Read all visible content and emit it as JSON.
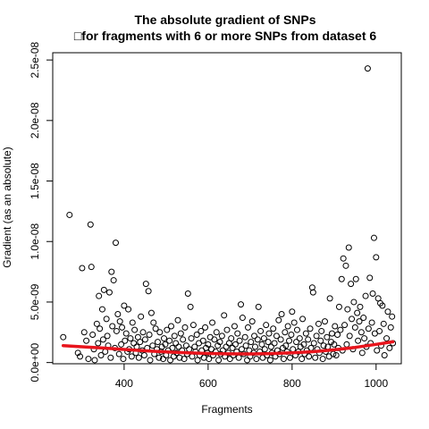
{
  "chart_data": {
    "type": "scatter",
    "title": "The absolute gradient of SNPs",
    "subtitle": "□for fragments with 6 or more SNPs from dataset 6",
    "xlabel": "Fragments",
    "ylabel": "Gradient (as an absolute)",
    "xlim": [
      230,
      1060
    ],
    "ylim": [
      -1e-10,
      2.56e-08
    ],
    "x_ticks": [
      400,
      600,
      800,
      1000
    ],
    "x_tick_labels": [
      "400",
      "600",
      "800",
      "1000"
    ],
    "y_ticks": [
      0,
      5e-09,
      1e-08,
      1.5e-08,
      2e-08,
      2.5e-08
    ],
    "y_tick_labels": [
      "0.0e+00",
      "5.0e-09",
      "1.0e-08",
      "1.5e-08",
      "2.0e-08",
      "2.5e-08"
    ],
    "grid": false,
    "legend": "none",
    "colors": {
      "points": "#000000",
      "trend": "#e8141c"
    },
    "trend": {
      "x": [
        255,
        300,
        350,
        400,
        450,
        500,
        550,
        600,
        650,
        700,
        750,
        800,
        850,
        900,
        950,
        1000,
        1040
      ],
      "y": [
        1.4e-09,
        1.3e-09,
        1.2e-09,
        1.08e-09,
        9.7e-10,
        8.8e-10,
        8e-10,
        7.5e-10,
        7.2e-10,
        7.1e-10,
        7.4e-10,
        8e-10,
        9e-10,
        1.05e-09,
        1.25e-09,
        1.5e-09,
        1.72e-09
      ]
    },
    "points": [
      [
        255,
        2.1e-09
      ],
      [
        270,
        1.22e-08
      ],
      [
        290,
        8e-10
      ],
      [
        295,
        5e-10
      ],
      [
        300,
        7.8e-09
      ],
      [
        305,
        2.5e-09
      ],
      [
        310,
        1.8e-09
      ],
      [
        315,
        3e-10
      ],
      [
        320,
        1.14e-08
      ],
      [
        322,
        7.9e-09
      ],
      [
        325,
        2.3e-09
      ],
      [
        328,
        1.1e-09
      ],
      [
        330,
        2e-10
      ],
      [
        335,
        3.2e-09
      ],
      [
        338,
        1.6e-09
      ],
      [
        340,
        5.5e-09
      ],
      [
        342,
        2.8e-09
      ],
      [
        345,
        6e-10
      ],
      [
        348,
        4.4e-09
      ],
      [
        350,
        1.9e-09
      ],
      [
        352,
        6e-09
      ],
      [
        355,
        9e-10
      ],
      [
        358,
        3.6e-09
      ],
      [
        360,
        2.2e-09
      ],
      [
        362,
        1.4e-09
      ],
      [
        365,
        5.8e-09
      ],
      [
        368,
        4e-10
      ],
      [
        370,
        7.5e-09
      ],
      [
        372,
        3e-09
      ],
      [
        375,
        6.8e-09
      ],
      [
        378,
        1.2e-09
      ],
      [
        380,
        9.9e-09
      ],
      [
        382,
        2.6e-09
      ],
      [
        385,
        4e-09
      ],
      [
        388,
        7e-10
      ],
      [
        390,
        3.4e-09
      ],
      [
        393,
        1.5e-09
      ],
      [
        395,
        2.9e-09
      ],
      [
        398,
        3e-10
      ],
      [
        400,
        4.7e-09
      ],
      [
        402,
        1.8e-09
      ],
      [
        405,
        2.4e-09
      ],
      [
        408,
        9e-10
      ],
      [
        410,
        4.4e-09
      ],
      [
        412,
        1.1e-09
      ],
      [
        415,
        2e-09
      ],
      [
        418,
        5e-10
      ],
      [
        420,
        3.3e-09
      ],
      [
        423,
        1.6e-09
      ],
      [
        425,
        2.7e-09
      ],
      [
        428,
        8e-10
      ],
      [
        430,
        1.3e-09
      ],
      [
        433,
        2.1e-09
      ],
      [
        435,
        4e-10
      ],
      [
        438,
        1.7e-09
      ],
      [
        440,
        3.8e-09
      ],
      [
        443,
        1e-09
      ],
      [
        445,
        2.5e-09
      ],
      [
        448,
        6e-10
      ],
      [
        450,
        1.9e-09
      ],
      [
        452,
        6.5e-09
      ],
      [
        455,
        1.2e-09
      ],
      [
        458,
        5.9e-09
      ],
      [
        460,
        2.3e-09
      ],
      [
        462,
        2e-10
      ],
      [
        465,
        4.1e-09
      ],
      [
        468,
        1.4e-09
      ],
      [
        470,
        3.3e-09
      ],
      [
        472,
        7e-10
      ],
      [
        475,
        2.8e-09
      ],
      [
        478,
        1.1e-09
      ],
      [
        480,
        1.7e-09
      ],
      [
        483,
        4e-10
      ],
      [
        485,
        2.5e-09
      ],
      [
        488,
        9e-10
      ],
      [
        490,
        1.3e-09
      ],
      [
        493,
        3e-10
      ],
      [
        495,
        2e-09
      ],
      [
        498,
        1.5e-09
      ],
      [
        500,
        6e-10
      ],
      [
        502,
        2.7e-09
      ],
      [
        505,
        1e-09
      ],
      [
        508,
        1.8e-09
      ],
      [
        510,
        2e-10
      ],
      [
        512,
        3e-09
      ],
      [
        515,
        1.2e-09
      ],
      [
        518,
        5e-10
      ],
      [
        520,
        2.2e-09
      ],
      [
        523,
        1.6e-09
      ],
      [
        525,
        8e-10
      ],
      [
        528,
        3.5e-09
      ],
      [
        530,
        1.3e-09
      ],
      [
        532,
        4e-10
      ],
      [
        535,
        2.4e-09
      ],
      [
        538,
        1e-09
      ],
      [
        540,
        1.9e-09
      ],
      [
        543,
        3e-10
      ],
      [
        545,
        2.9e-09
      ],
      [
        548,
        1.4e-09
      ],
      [
        550,
        7e-10
      ],
      [
        552,
        5.7e-09
      ],
      [
        555,
        1.1e-09
      ],
      [
        558,
        4.6e-09
      ],
      [
        560,
        2e-09
      ],
      [
        562,
        5e-10
      ],
      [
        565,
        3.1e-09
      ],
      [
        568,
        1.3e-09
      ],
      [
        570,
        9e-10
      ],
      [
        573,
        2.3e-09
      ],
      [
        575,
        2e-10
      ],
      [
        578,
        1.6e-09
      ],
      [
        580,
        6e-10
      ],
      [
        583,
        2.6e-09
      ],
      [
        585,
        1e-09
      ],
      [
        588,
        1.8e-09
      ],
      [
        590,
        4e-10
      ],
      [
        593,
        2.9e-09
      ],
      [
        595,
        1.2e-09
      ],
      [
        598,
        8e-10
      ],
      [
        600,
        1.5e-09
      ],
      [
        602,
        3e-10
      ],
      [
        605,
        2.1e-09
      ],
      [
        608,
        1.1e-09
      ],
      [
        610,
        3.3e-09
      ],
      [
        612,
        6e-10
      ],
      [
        615,
        1.9e-09
      ],
      [
        618,
        9e-10
      ],
      [
        620,
        2.5e-09
      ],
      [
        623,
        1.4e-09
      ],
      [
        625,
        2e-10
      ],
      [
        628,
        1.7e-09
      ],
      [
        630,
        7e-10
      ],
      [
        633,
        2.2e-09
      ],
      [
        635,
        1e-09
      ],
      [
        638,
        3.9e-09
      ],
      [
        640,
        5e-10
      ],
      [
        643,
        1.3e-09
      ],
      [
        645,
        2.7e-09
      ],
      [
        648,
        8e-10
      ],
      [
        650,
        1.6e-09
      ],
      [
        652,
        3e-10
      ],
      [
        655,
        2e-09
      ],
      [
        658,
        1.2e-09
      ],
      [
        660,
        6e-10
      ],
      [
        663,
        3e-09
      ],
      [
        665,
        1.5e-09
      ],
      [
        668,
        9e-10
      ],
      [
        670,
        2.4e-09
      ],
      [
        673,
        4e-10
      ],
      [
        675,
        1.8e-09
      ],
      [
        678,
        4.8e-09
      ],
      [
        680,
        1.1e-09
      ],
      [
        682,
        3.7e-09
      ],
      [
        685,
        7e-10
      ],
      [
        688,
        2.1e-09
      ],
      [
        690,
        1.4e-09
      ],
      [
        693,
        2e-10
      ],
      [
        695,
        2.9e-09
      ],
      [
        698,
        1e-09
      ],
      [
        700,
        5e-10
      ],
      [
        702,
        1.7e-09
      ],
      [
        705,
        3.4e-09
      ],
      [
        708,
        8e-10
      ],
      [
        710,
        2.2e-09
      ],
      [
        712,
        1.3e-09
      ],
      [
        715,
        3e-10
      ],
      [
        718,
        1.9e-09
      ],
      [
        720,
        4.6e-09
      ],
      [
        723,
        9e-10
      ],
      [
        725,
        2.6e-09
      ],
      [
        728,
        1.5e-09
      ],
      [
        730,
        4e-10
      ],
      [
        733,
        2e-09
      ],
      [
        735,
        1.1e-09
      ],
      [
        738,
        3.1e-09
      ],
      [
        740,
        6e-10
      ],
      [
        743,
        1.7e-09
      ],
      [
        745,
        2.4e-09
      ],
      [
        748,
        2e-10
      ],
      [
        750,
        1.3e-09
      ],
      [
        752,
        8e-10
      ],
      [
        755,
        2.8e-09
      ],
      [
        758,
        1.6e-09
      ],
      [
        760,
        5e-10
      ],
      [
        763,
        2.2e-09
      ],
      [
        765,
        1e-09
      ],
      [
        768,
        3.5e-09
      ],
      [
        770,
        7e-10
      ],
      [
        773,
        1.9e-09
      ],
      [
        775,
        4e-09
      ],
      [
        778,
        1.2e-09
      ],
      [
        780,
        3e-10
      ],
      [
        783,
        2.5e-09
      ],
      [
        785,
        1.4e-09
      ],
      [
        788,
        9e-10
      ],
      [
        790,
        3e-09
      ],
      [
        793,
        1.8e-09
      ],
      [
        795,
        4e-10
      ],
      [
        798,
        2.3e-09
      ],
      [
        800,
        4.2e-09
      ],
      [
        802,
        1.1e-09
      ],
      [
        805,
        3.3e-09
      ],
      [
        808,
        6e-10
      ],
      [
        810,
        1.7e-09
      ],
      [
        812,
        2.7e-09
      ],
      [
        815,
        9e-10
      ],
      [
        818,
        2e-09
      ],
      [
        820,
        1.3e-09
      ],
      [
        823,
        3e-10
      ],
      [
        825,
        3.6e-09
      ],
      [
        828,
        1.5e-09
      ],
      [
        830,
        7e-10
      ],
      [
        833,
        2.4e-09
      ],
      [
        835,
        1e-09
      ],
      [
        838,
        1.9e-09
      ],
      [
        840,
        5e-10
      ],
      [
        843,
        2.8e-09
      ],
      [
        845,
        1.2e-09
      ],
      [
        848,
        6.2e-09
      ],
      [
        850,
        5.8e-09
      ],
      [
        852,
        1.6e-09
      ],
      [
        855,
        4e-10
      ],
      [
        858,
        2.2e-09
      ],
      [
        860,
        1.1e-09
      ],
      [
        863,
        3.2e-09
      ],
      [
        865,
        8e-10
      ],
      [
        868,
        1.8e-09
      ],
      [
        870,
        2.6e-09
      ],
      [
        873,
        3e-10
      ],
      [
        875,
        1.4e-09
      ],
      [
        878,
        3.4e-09
      ],
      [
        880,
        9e-10
      ],
      [
        883,
        2.1e-09
      ],
      [
        885,
        1.3e-09
      ],
      [
        888,
        5e-10
      ],
      [
        890,
        5.3e-09
      ],
      [
        893,
        1.7e-09
      ],
      [
        895,
        2.4e-09
      ],
      [
        898,
        7e-10
      ],
      [
        900,
        1.5e-09
      ],
      [
        902,
        3e-09
      ],
      [
        905,
        6e-10
      ],
      [
        908,
        2.3e-09
      ],
      [
        910,
        1.2e-09
      ],
      [
        912,
        4.6e-09
      ],
      [
        915,
        2.7e-09
      ],
      [
        918,
        6.9e-09
      ],
      [
        920,
        1e-09
      ],
      [
        922,
        8.6e-09
      ],
      [
        925,
        3.1e-09
      ],
      [
        928,
        8e-09
      ],
      [
        930,
        1.5e-09
      ],
      [
        932,
        4.4e-09
      ],
      [
        935,
        9.5e-09
      ],
      [
        937,
        2.2e-09
      ],
      [
        940,
        6.5e-09
      ],
      [
        942,
        3.6e-09
      ],
      [
        945,
        1.1e-09
      ],
      [
        947,
        5e-09
      ],
      [
        950,
        2.9e-09
      ],
      [
        952,
        6.9e-09
      ],
      [
        955,
        4.1e-09
      ],
      [
        957,
        1.8e-09
      ],
      [
        960,
        3.4e-09
      ],
      [
        962,
        4.6e-09
      ],
      [
        965,
        2.5e-09
      ],
      [
        967,
        8e-10
      ],
      [
        970,
        3.7e-09
      ],
      [
        972,
        2e-09
      ],
      [
        975,
        5.5e-09
      ],
      [
        977,
        1.3e-09
      ],
      [
        980,
        2.43e-08
      ],
      [
        982,
        2.8e-09
      ],
      [
        985,
        7e-09
      ],
      [
        987,
        1.6e-09
      ],
      [
        990,
        3.3e-09
      ],
      [
        992,
        5.7e-09
      ],
      [
        995,
        1.03e-08
      ],
      [
        997,
        2.4e-09
      ],
      [
        1000,
        8.7e-09
      ],
      [
        1002,
        1e-09
      ],
      [
        1005,
        5.3e-09
      ],
      [
        1008,
        2.6e-09
      ],
      [
        1010,
        4.9e-09
      ],
      [
        1012,
        1.4e-09
      ],
      [
        1015,
        4.7e-09
      ],
      [
        1018,
        3.2e-09
      ],
      [
        1020,
        6e-10
      ],
      [
        1025,
        2e-09
      ],
      [
        1028,
        4.2e-09
      ],
      [
        1032,
        1.2e-09
      ],
      [
        1035,
        2.9e-09
      ],
      [
        1038,
        3.8e-09
      ],
      [
        1040,
        1.6e-09
      ]
    ]
  }
}
